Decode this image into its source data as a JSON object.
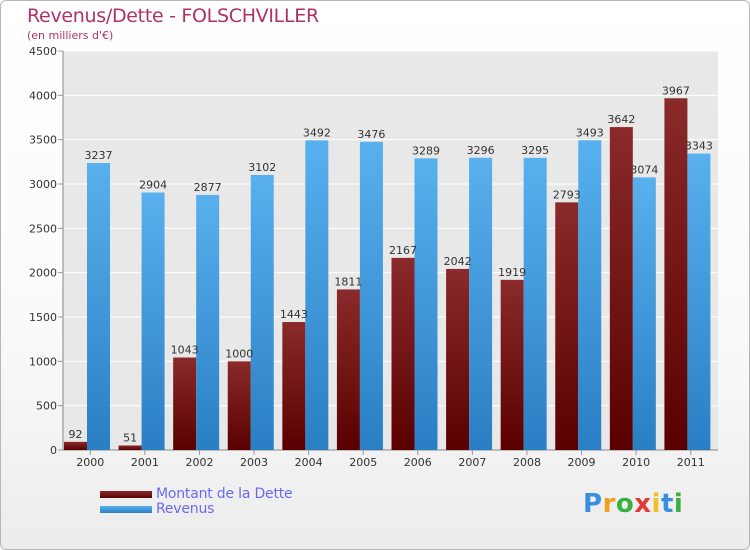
{
  "chart_data": {
    "type": "bar",
    "title": "Revenus/Dette - FOLSCHVILLER",
    "subtitle": "(en milliers d'€)",
    "categories": [
      "2000",
      "2001",
      "2002",
      "2003",
      "2004",
      "2005",
      "2006",
      "2007",
      "2008",
      "2009",
      "2010",
      "2011"
    ],
    "series": [
      {
        "name": "Montant de la Dette",
        "color": "#6a0a0a",
        "values": [
          92,
          51,
          1043,
          1000,
          1443,
          1811,
          2167,
          2042,
          1919,
          2793,
          3642,
          3967
        ]
      },
      {
        "name": "Revenus",
        "color": "#3a9ae0",
        "values": [
          3237,
          2904,
          2877,
          3102,
          3492,
          3476,
          3289,
          3296,
          3295,
          3493,
          3074,
          3343
        ]
      }
    ],
    "y_ticks": [
      0,
      500,
      1000,
      1500,
      2000,
      2500,
      3000,
      3500,
      4000,
      4500
    ],
    "ylim": [
      0,
      4500
    ],
    "grid": true,
    "legend_position": "bottom-left"
  },
  "branding": {
    "logo_letters": [
      "P",
      "r",
      "o",
      "x",
      "i",
      "t",
      "i"
    ],
    "logo_colors": [
      "#3a8ee0",
      "#f0a020",
      "#3ab040",
      "#e03a3a",
      "#f0c020",
      "#3a8ee0",
      "#3ab040"
    ]
  }
}
